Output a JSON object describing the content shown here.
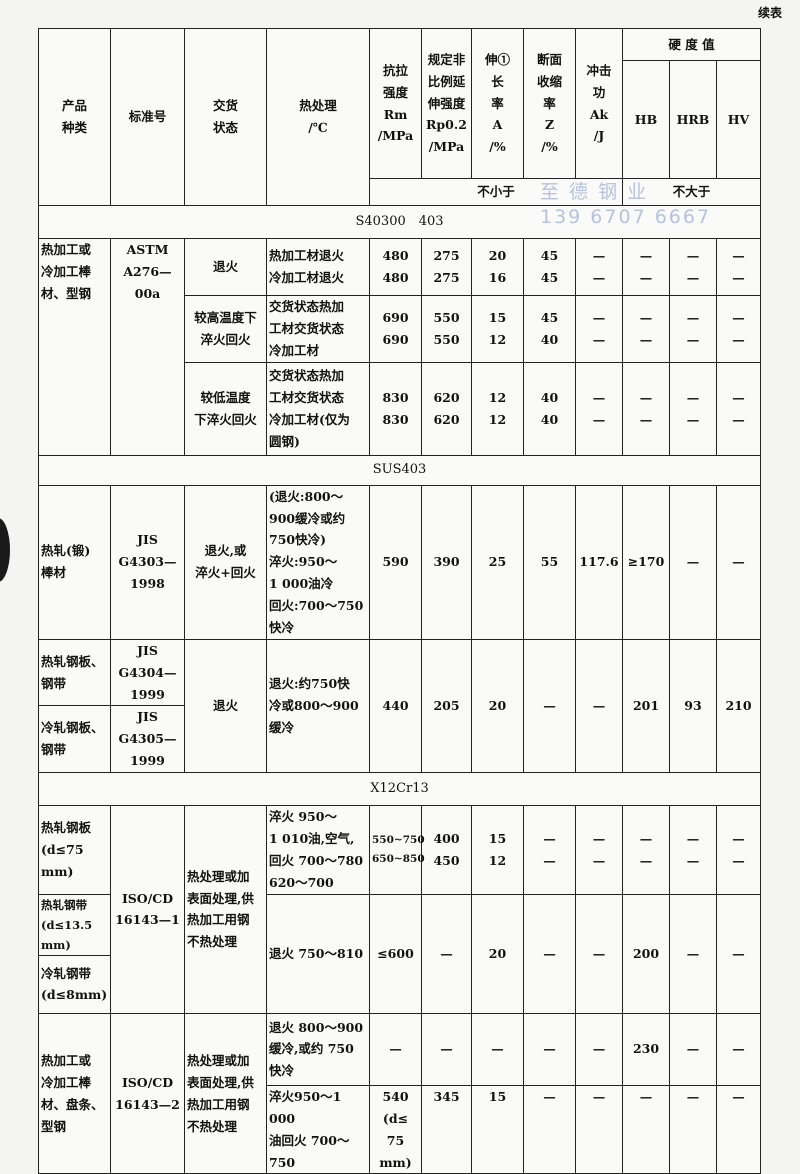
{
  "continued_label": "续表",
  "watermark": {
    "line1": "至 德 钢 业",
    "line2": "139 6707 6667"
  },
  "header": {
    "product": "产品\n种类",
    "standard": "标准号",
    "delivery": "交货\n状态",
    "heat": "热处理\n/℃",
    "rm": "抗拉\n强度\nRm\n/MPa",
    "rp": "规定非\n比例延\n伸强度\nRp0.2\n/MPa",
    "a": "伸①\n长\n率\nA\n/%",
    "z": "断面\n收缩\n率\nZ\n/%",
    "ak": "冲击\n功\nAk\n/J",
    "hardness": "硬 度 值",
    "hb": "HB",
    "hrb": "HRB",
    "hv": "HV",
    "not_less": "不小于",
    "not_more": "不大于"
  },
  "s1": {
    "grade": "S40300　403",
    "rows": [
      {
        "product": "热加工或\n冷加工棒\n材、型钢",
        "standard": "ASTM\nA276—00a",
        "delivery": "退火",
        "heat": "热加工材退火\n冷加工材退火",
        "rm": "480\n480",
        "rp": "275\n275",
        "a": "20\n16",
        "z": "45\n45",
        "ak": "—\n—",
        "hb": "—\n—",
        "hrb": "—\n—",
        "hv": "—\n—"
      },
      {
        "delivery": "较高温度下\n淬火回火",
        "heat": "交货状态热加\n工材交货状态\n冷加工材",
        "rm": "690\n690",
        "rp": "550\n550",
        "a": "15\n12",
        "z": "45\n40",
        "ak": "—\n—",
        "hb": "—\n—",
        "hrb": "—\n—",
        "hv": "—\n—"
      },
      {
        "delivery": "较低温度\n下淬火回火",
        "heat": "交货状态热加\n工材交货状态\n冷加工材(仅为\n圆钢)",
        "rm": "830\n830",
        "rp": "620\n620",
        "a": "12\n12",
        "z": "40\n40",
        "ak": "—\n—",
        "hb": "—\n—",
        "hrb": "—\n—",
        "hv": "—\n—"
      }
    ]
  },
  "s2": {
    "grade": "SUS403",
    "rows": [
      {
        "product": "热轧(锻)\n棒材",
        "standard": "JIS\nG4303—1998",
        "delivery": "退火,或\n淬火+回火",
        "heat": "(退火:800～\n900缓冷或约\n750快冷)\n淬火:950～\n1 000油冷\n回火:700～750\n快冷",
        "rm": "590",
        "rp": "390",
        "a": "25",
        "z": "55",
        "ak": "117.6",
        "hb": "≥170",
        "hrb": "—",
        "hv": "—"
      },
      {
        "product": "热轧钢板、\n钢带",
        "standard": "JIS\nG4304—1999",
        "delivery": "退火",
        "heat": "退火:约750快\n冷或800～900\n缓冷",
        "rm": "440",
        "rp": "205",
        "a": "20",
        "z": "—",
        "ak": "—",
        "hb": "201",
        "hrb": "93",
        "hv": "210"
      },
      {
        "product": "冷轧钢板、\n钢带",
        "standard": "JIS\nG4305—1999"
      }
    ]
  },
  "s3": {
    "grade": "X12Cr13",
    "rows": [
      {
        "product": "热轧钢板\n(d≤75 mm)",
        "standard": "ISO/CD\n16143—1",
        "delivery": "热处理或加\n表面处理,供\n热加工用钢\n不热处理",
        "heat": "淬火 950～\n1 010油,空气,\n回火 700～780\n620～700",
        "rm": "550~750\n650~850",
        "rp": "400\n450",
        "a": "15\n12",
        "z": "—\n—",
        "ak": "—\n—",
        "hb": "—\n—",
        "hrb": "—\n—",
        "hv": "—\n—"
      },
      {
        "product": "热轧钢带\n(d≤13.5 mm)",
        "heat": "退火 750～810",
        "rm": "≤600",
        "rp": "—",
        "a": "20",
        "z": "—",
        "ak": "—",
        "hb": "200",
        "hrb": "—",
        "hv": "—"
      },
      {
        "product": "冷轧钢带\n(d≤8mm)"
      },
      {
        "product": "热加工或\n冷加工棒\n材、盘条、\n型钢",
        "standard": "ISO/CD\n16143—2",
        "delivery": "热处理或加\n表面处理,供\n热加工用钢\n不热处理",
        "heat": "退火 800～900\n缓冷,或约 750\n快冷",
        "rm": "—",
        "rp": "—",
        "a": "—",
        "z": "—",
        "ak": "—",
        "hb": "230",
        "hrb": "—",
        "hv": "—"
      },
      {
        "heat": "淬火950～1 000\n油回火 700～\n750",
        "rm": "540\n(d≤\n75 mm)",
        "rp": "345",
        "a": "15",
        "z": "—",
        "ak": "—",
        "hb": "—",
        "hrb": "—",
        "hv": "—"
      }
    ]
  }
}
